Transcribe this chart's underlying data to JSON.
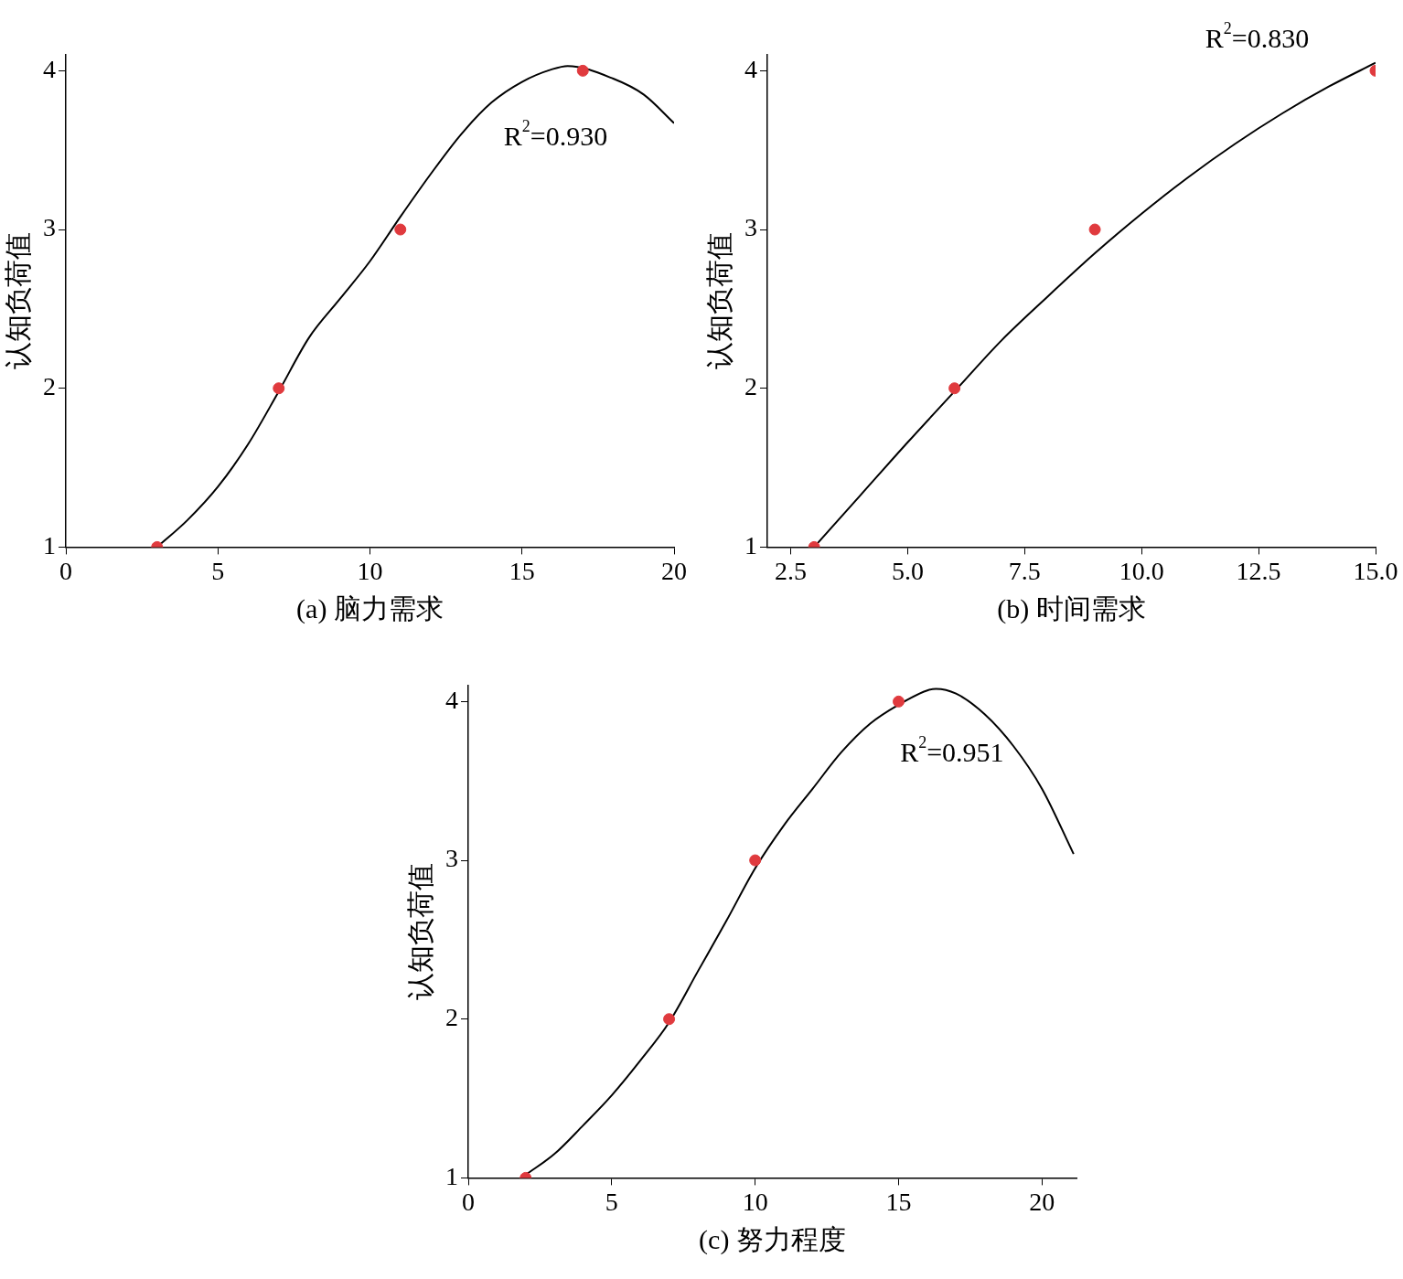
{
  "chart_data": [
    {
      "type": "scatter",
      "xlabel": "(a) 脑力需求",
      "ylabel": "认知负荷值",
      "xlim": [
        0,
        20
      ],
      "xticks": [
        0,
        5,
        10,
        15,
        20
      ],
      "ylim": [
        1,
        4.1
      ],
      "yticks": [
        1,
        2,
        3,
        4
      ],
      "grid": false,
      "legend": false,
      "annotations": [
        "R$^{2}$=0.930"
      ],
      "series": [
        {
          "type": "scatter",
          "color": "#e03a3e",
          "marker": "circle",
          "x": [
            3,
            7,
            11,
            17
          ],
          "values": [
            1,
            2,
            3,
            4
          ]
        },
        {
          "type": "line",
          "color": "#000000",
          "marker": "none",
          "line_style": "solid",
          "x": [
            3,
            4,
            5,
            6,
            7,
            8,
            9,
            10,
            11,
            12,
            13,
            14,
            15,
            16,
            16.5,
            18,
            19,
            20
          ],
          "values": [
            1,
            1.17,
            1.38,
            1.65,
            1.98,
            2.32,
            2.56,
            2.8,
            3.08,
            3.35,
            3.6,
            3.8,
            3.93,
            4.01,
            4.03,
            3.95,
            3.85,
            3.67
          ]
        }
      ]
    },
    {
      "type": "scatter",
      "xlabel": "(b) 时间需求",
      "ylabel": "认知负荷值",
      "xlim": [
        2,
        15
      ],
      "xticks": [
        2.5,
        {
          "value": 5,
          "label": "5.0"
        },
        7.5,
        {
          "value": 10,
          "label": "10.0"
        },
        12.5,
        {
          "value": 15,
          "label": "15.0"
        }
      ],
      "ylim": [
        1,
        4.1
      ],
      "yticks": [
        1,
        2,
        3,
        4
      ],
      "grid": false,
      "legend": false,
      "annotations": [
        "R$^{2}$=0.830"
      ],
      "series": [
        {
          "type": "scatter",
          "color": "#e03a3e",
          "marker": "circle",
          "x": [
            3,
            6,
            9,
            15
          ],
          "values": [
            1,
            2,
            3,
            4
          ]
        },
        {
          "type": "line",
          "color": "#000000",
          "marker": "none",
          "line_style": "solid",
          "x": [
            3,
            4,
            5,
            6,
            7,
            8,
            9,
            10,
            11,
            12,
            13,
            14,
            15
          ],
          "values": [
            1,
            1.33,
            1.66,
            1.98,
            2.3,
            2.58,
            2.85,
            3.1,
            3.33,
            3.54,
            3.73,
            3.9,
            4.05
          ]
        }
      ]
    },
    {
      "type": "scatter",
      "xlabel": "(c) 努力程度",
      "ylabel": "认知负荷值",
      "xlim": [
        0,
        21.2
      ],
      "xticks": [
        0,
        5,
        10,
        15,
        20
      ],
      "ylim": [
        1,
        4.1
      ],
      "yticks": [
        1,
        2,
        3,
        4
      ],
      "grid": false,
      "legend": false,
      "annotations": [
        "R$^{2}$=0.951"
      ],
      "series": [
        {
          "type": "scatter",
          "color": "#e03a3e",
          "marker": "circle",
          "x": [
            2,
            7,
            10,
            15
          ],
          "values": [
            1,
            2,
            3,
            4
          ]
        },
        {
          "type": "line",
          "color": "#000000",
          "marker": "none",
          "line_style": "solid",
          "x": [
            2,
            3,
            4,
            5,
            6,
            7,
            8,
            9,
            10,
            11,
            12,
            13,
            14,
            15,
            16,
            16.3,
            17,
            18,
            19,
            20,
            21.1
          ],
          "values": [
            1.02,
            1.15,
            1.33,
            1.52,
            1.74,
            1.98,
            2.3,
            2.62,
            2.95,
            3.22,
            3.45,
            3.68,
            3.86,
            3.98,
            4.07,
            4.08,
            4.05,
            3.92,
            3.72,
            3.45,
            3.04
          ]
        }
      ]
    }
  ]
}
